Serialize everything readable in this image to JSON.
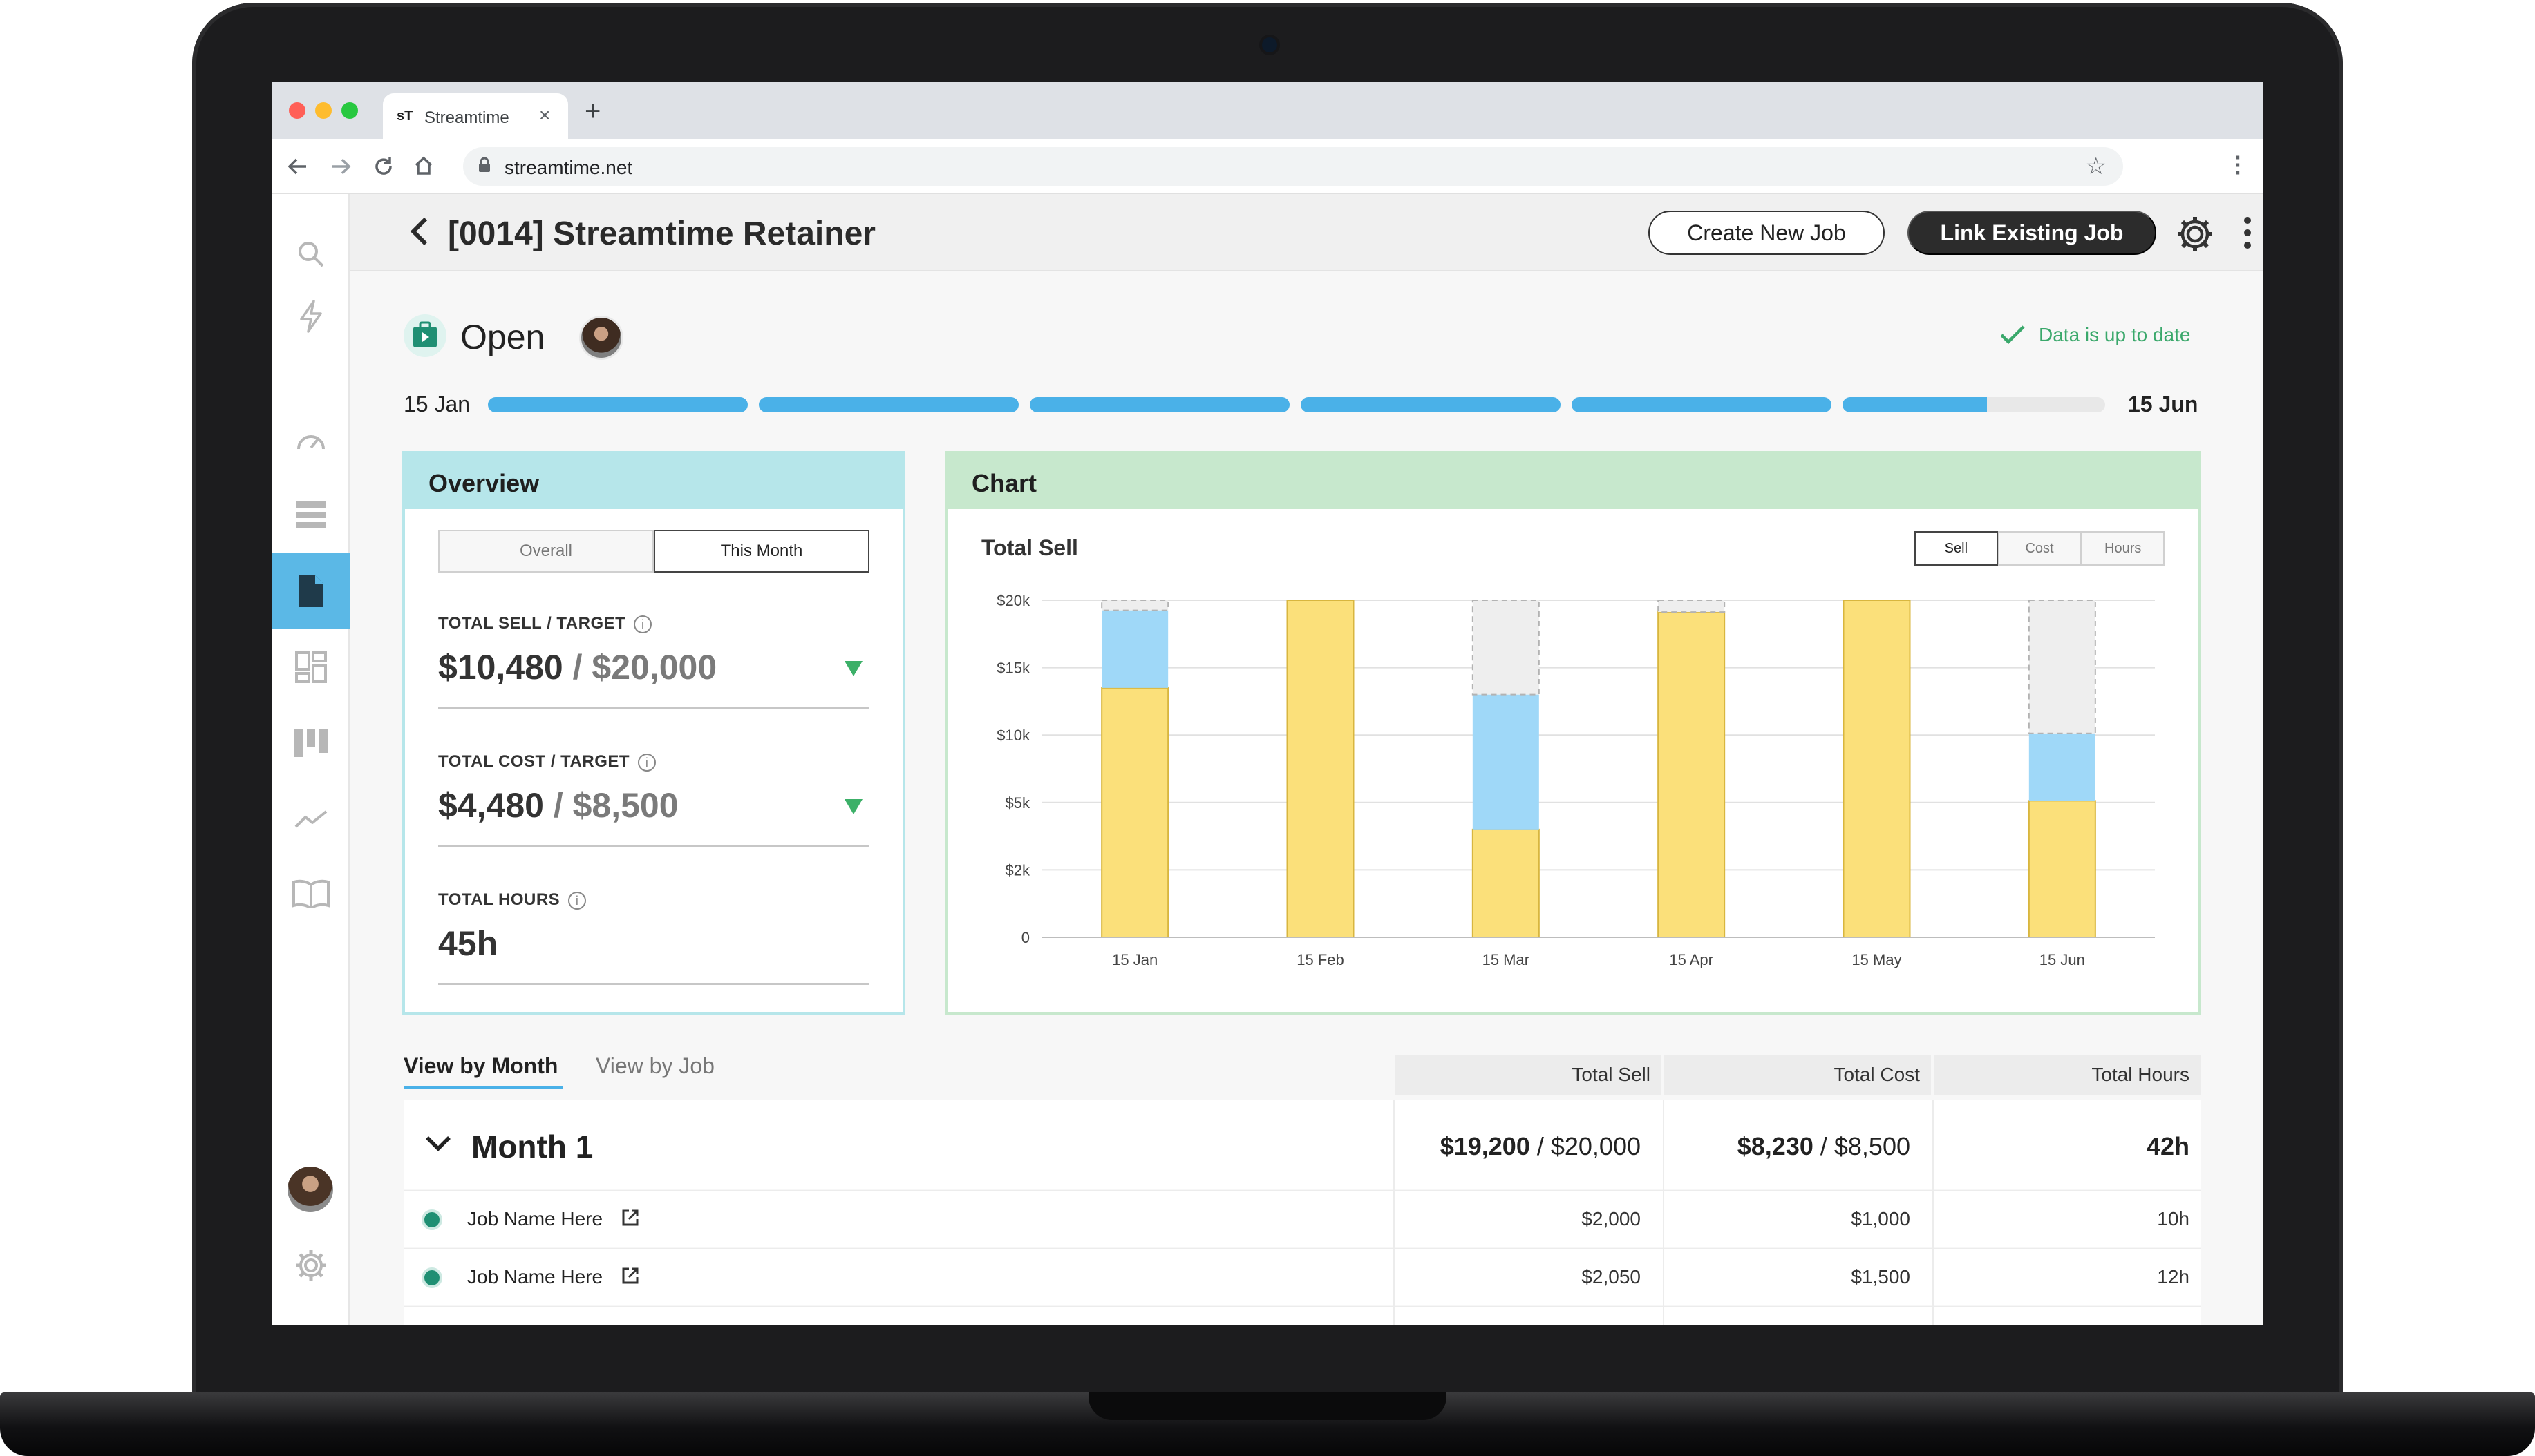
{
  "browser": {
    "tab_title": "Streamtime",
    "favicon": "sT",
    "tab_close": "×",
    "new_tab": "+",
    "url": "streamtime.net"
  },
  "header": {
    "back_icon": "chevron-left-icon",
    "title": "[0014] Streamtime Retainer",
    "create_label": "Create New Job",
    "link_label": "Link Existing Job"
  },
  "status": {
    "label": "Open",
    "sync_text": "Data is up to date"
  },
  "timeline": {
    "start": "15 Jan",
    "end": "15 Jun",
    "segment_fill": [
      1,
      1,
      1,
      1,
      1,
      0.55
    ]
  },
  "overview": {
    "title": "Overview",
    "tabs": [
      "Overall",
      "This Month"
    ],
    "selected_tab": "This Month",
    "sell_label": "TOTAL SELL / TARGET",
    "sell_value": "$10,480",
    "sell_target": " / $20,000",
    "cost_label": "TOTAL COST / TARGET",
    "cost_value": "$4,480",
    "cost_target": " / $8,500",
    "hours_label": "TOTAL HOURS",
    "hours_value": "45h",
    "info_glyph": "i"
  },
  "chart": {
    "title": "Chart",
    "subtitle": "Total Sell",
    "tabs": [
      "Sell",
      "Cost",
      "Hours"
    ],
    "selected_tab": "Sell"
  },
  "chart_data": {
    "type": "bar",
    "stacked": true,
    "categories": [
      "15 Jan",
      "15 Feb",
      "15 Mar",
      "15 Apr",
      "15 May",
      "15 Jun"
    ],
    "y_ticks": [
      "0",
      "$2k",
      "$5k",
      "$10k",
      "$15k",
      "$20k"
    ],
    "target": 20000,
    "series": [
      {
        "color": "#fbe07a",
        "values": [
          14800,
          20000,
          6400,
          19300,
          20000,
          8100
        ]
      },
      {
        "color": "#9fd8f8",
        "values": [
          4600,
          0,
          8000,
          0,
          0,
          4000
        ]
      },
      {
        "color": "#eeeeee",
        "values": [
          600,
          0,
          5600,
          700,
          0,
          7900
        ]
      }
    ],
    "grid": true
  },
  "table": {
    "view_tabs": [
      "View by Month",
      "View by Job"
    ],
    "columns": [
      "Total Sell",
      "Total Cost",
      "Total Hours"
    ],
    "month": {
      "title": "Month 1",
      "sell": "$19,200",
      "sell_target": " / $20,000",
      "cost": "$8,230",
      "cost_target": " / $8,500",
      "hours": "42h"
    },
    "rows": [
      {
        "name": "Job Name Here",
        "sell": "$2,000",
        "cost": "$1,000",
        "hours": "10h"
      },
      {
        "name": "Job Name Here",
        "sell": "$2,050",
        "cost": "$1,500",
        "hours": "12h"
      }
    ]
  },
  "colors": {
    "accent_blue": "#4ab1e8",
    "overview_head": "#b6e6ea",
    "chart_head": "#c7e8cd",
    "positive_green": "#3cb068"
  }
}
